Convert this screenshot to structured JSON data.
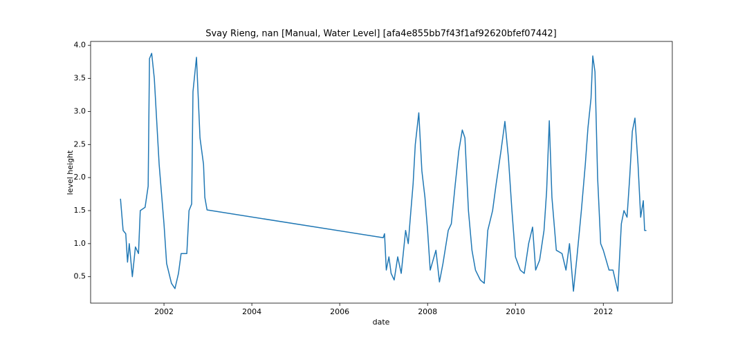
{
  "chart_data": {
    "type": "line",
    "title": "Svay Rieng, nan [Manual, Water Level] [afa4e855bb7f43f1af92620bfef07442]",
    "x_label": "date",
    "y_label": "level height",
    "xlim": [
      2000.33,
      2013.57
    ],
    "ylim": [
      0.1,
      4.06
    ],
    "xticks": [
      2002,
      2004,
      2006,
      2008,
      2010,
      2012
    ],
    "yticks": [
      0.5,
      {
        "value": 1,
        "label": "1.0"
      },
      1.5,
      {
        "value": 2,
        "label": "2.0"
      },
      2.5,
      {
        "value": 3,
        "label": "3.0"
      },
      3.5,
      {
        "value": 4,
        "label": "4.0"
      }
    ],
    "grid": false,
    "series": [
      {
        "color": "#1f77b4",
        "x": [
          2001.01,
          2001.07,
          2001.13,
          2001.17,
          2001.21,
          2001.28,
          2001.35,
          2001.42,
          2001.46,
          2001.57,
          2001.64,
          2001.67,
          2001.72,
          2001.78,
          2001.89,
          2002.0,
          2002.06,
          2002.17,
          2002.25,
          2002.33,
          2002.39,
          2002.52,
          2002.57,
          2002.63,
          2002.66,
          2002.74,
          2002.82,
          2002.9,
          2002.93,
          2002.98,
          2006.99,
          2007.02,
          2007.06,
          2007.12,
          2007.17,
          2007.24,
          2007.32,
          2007.4,
          2007.5,
          2007.56,
          2007.62,
          2007.67,
          2007.72,
          2007.8,
          2007.87,
          2007.94,
          2008.0,
          2008.06,
          2008.19,
          2008.27,
          2008.35,
          2008.47,
          2008.54,
          2008.63,
          2008.71,
          2008.79,
          2008.85,
          2008.93,
          2009.01,
          2009.09,
          2009.2,
          2009.29,
          2009.37,
          2009.48,
          2009.56,
          2009.67,
          2009.76,
          2009.84,
          2009.92,
          2010.0,
          2010.11,
          2010.2,
          2010.3,
          2010.39,
          2010.46,
          2010.55,
          2010.65,
          2010.71,
          2010.77,
          2010.83,
          2010.93,
          2011.06,
          2011.15,
          2011.23,
          2011.32,
          2011.4,
          2011.5,
          2011.59,
          2011.65,
          2011.72,
          2011.76,
          2011.81,
          2011.87,
          2011.94,
          2012.0,
          2012.13,
          2012.22,
          2012.33,
          2012.41,
          2012.47,
          2012.54,
          2012.6,
          2012.66,
          2012.72,
          2012.79,
          2012.85,
          2012.91,
          2012.94,
          2012.98
        ],
        "values": [
          1.68,
          1.2,
          1.15,
          0.72,
          1.0,
          0.5,
          0.95,
          0.85,
          1.5,
          1.55,
          1.87,
          3.8,
          3.88,
          3.5,
          2.2,
          1.3,
          0.7,
          0.4,
          0.32,
          0.55,
          0.85,
          0.85,
          1.5,
          1.6,
          3.3,
          3.82,
          2.6,
          2.2,
          1.7,
          1.51,
          1.09,
          1.15,
          0.6,
          0.8,
          0.55,
          0.45,
          0.8,
          0.55,
          1.2,
          1.0,
          1.5,
          1.9,
          2.5,
          2.98,
          2.1,
          1.7,
          1.2,
          0.6,
          0.9,
          0.42,
          0.7,
          1.2,
          1.3,
          1.9,
          2.4,
          2.72,
          2.6,
          1.5,
          0.9,
          0.6,
          0.45,
          0.4,
          1.2,
          1.5,
          1.9,
          2.4,
          2.85,
          2.3,
          1.5,
          0.8,
          0.6,
          0.55,
          1.0,
          1.25,
          0.6,
          0.75,
          1.2,
          1.8,
          2.86,
          1.7,
          0.9,
          0.85,
          0.6,
          1.0,
          0.28,
          0.8,
          1.5,
          2.2,
          2.75,
          3.2,
          3.84,
          3.6,
          2.0,
          1.0,
          0.9,
          0.6,
          0.6,
          0.28,
          1.3,
          1.5,
          1.4,
          2.0,
          2.7,
          2.9,
          2.2,
          1.4,
          1.65,
          1.2,
          1.2
        ]
      }
    ]
  }
}
